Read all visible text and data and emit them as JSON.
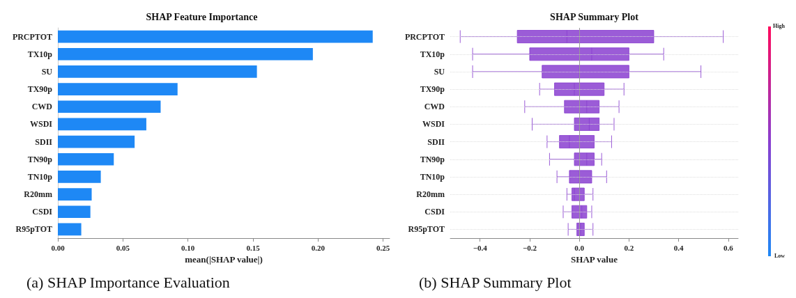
{
  "chart_data": [
    {
      "type": "bar",
      "orientation": "horizontal",
      "title": "SHAP Feature Importance",
      "xlabel": "mean(|SHAP value|)",
      "categories": [
        "PRCPTOT",
        "TX10p",
        "SU",
        "TX90p",
        "CWD",
        "WSDI",
        "SDII",
        "TN90p",
        "TN10p",
        "R20mm",
        "CSDI",
        "R95pTOT"
      ],
      "values": [
        0.242,
        0.196,
        0.153,
        0.092,
        0.079,
        0.068,
        0.059,
        0.043,
        0.033,
        0.026,
        0.025,
        0.018
      ],
      "color": "#1e88f5",
      "xlim": [
        0,
        0.255
      ],
      "xticks": [
        {
          "value": 0,
          "label": "0.00"
        },
        {
          "value": 0.05,
          "label": "0.05"
        },
        {
          "value": 0.1,
          "label": "0.10"
        },
        {
          "value": 0.15,
          "label": "0.15"
        },
        {
          "value": 0.2,
          "label": "0.20"
        },
        {
          "value": 0.25,
          "label": "0.25"
        }
      ],
      "grid": false,
      "annotations": [
        "(a) SHAP Importance Evaluation"
      ]
    },
    {
      "type": "box",
      "orientation": "horizontal",
      "title": "SHAP Summary Plot",
      "xlabel": "SHAP value",
      "categories": [
        "PRCPTOT",
        "TX10p",
        "SU",
        "TX90p",
        "CWD",
        "WSDI",
        "SDII",
        "TN90p",
        "TN10p",
        "R20mm",
        "CSDI",
        "R95pTOT"
      ],
      "color": "#8a3fd0",
      "boxes": [
        {
          "low": -0.48,
          "q1": -0.25,
          "median": -0.05,
          "q3": 0.3,
          "high": 0.58
        },
        {
          "low": -0.43,
          "q1": -0.2,
          "median": 0.05,
          "q3": 0.2,
          "high": 0.34
        },
        {
          "low": -0.43,
          "q1": -0.15,
          "median": 0,
          "q3": 0.2,
          "high": 0.49
        },
        {
          "low": -0.16,
          "q1": -0.1,
          "median": -0.02,
          "q3": 0.1,
          "high": 0.18
        },
        {
          "low": -0.22,
          "q1": -0.06,
          "median": 0.03,
          "q3": 0.08,
          "high": 0.16
        },
        {
          "low": -0.19,
          "q1": -0.02,
          "median": 0.04,
          "q3": 0.08,
          "high": 0.14
        },
        {
          "low": -0.13,
          "q1": -0.08,
          "median": -0.04,
          "q3": 0.06,
          "high": 0.13
        },
        {
          "low": -0.12,
          "q1": -0.02,
          "median": 0.03,
          "q3": 0.06,
          "high": 0.09
        },
        {
          "low": -0.09,
          "q1": -0.04,
          "median": 0,
          "q3": 0.05,
          "high": 0.11
        },
        {
          "low": -0.05,
          "q1": -0.03,
          "median": -0.02,
          "q3": 0.02,
          "high": 0.055
        },
        {
          "low": -0.065,
          "q1": -0.03,
          "median": 0.01,
          "q3": 0.03,
          "high": 0.05
        },
        {
          "low": -0.045,
          "q1": -0.01,
          "median": 0.005,
          "q3": 0.02,
          "high": 0.055
        }
      ],
      "xlim": [
        -0.52,
        0.64
      ],
      "xticks": [
        {
          "value": -0.4,
          "label": "−0.4"
        },
        {
          "value": -0.2,
          "label": "−0.2"
        },
        {
          "value": 0,
          "label": "0.0"
        },
        {
          "value": 0.2,
          "label": "0.2"
        },
        {
          "value": 0.4,
          "label": "0.4"
        },
        {
          "value": 0.6,
          "label": "0.6"
        }
      ],
      "grid": "y",
      "ref_lines": [
        {
          "axis": "x",
          "value": 0,
          "color": "#999999"
        }
      ],
      "clim": [
        0,
        1
      ],
      "cticks": [
        {
          "value": 0,
          "label": "Low"
        },
        {
          "value": 1,
          "label": "High"
        }
      ],
      "annotations": [
        "(b) SHAP Summary Plot"
      ]
    }
  ]
}
